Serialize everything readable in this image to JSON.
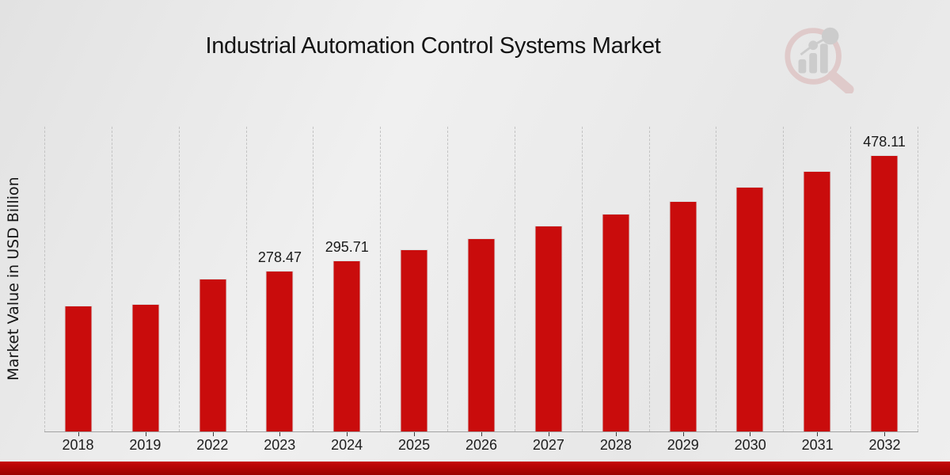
{
  "page": {
    "title": "Industrial Automation Control Systems Market"
  },
  "icons": {
    "brand_logo": "magnifier-bar-chart-logo"
  },
  "colors": {
    "bar": "#c90c0c",
    "strip_top": "#c70808",
    "strip_bottom": "#9a0101",
    "background": "#eaeaea",
    "gridline": "#c3c3c3",
    "axis_line": "#a3a3a3"
  },
  "chart_data": {
    "type": "bar",
    "title": "Industrial Automation Control Systems Market",
    "xlabel": "",
    "ylabel": "Market Value in USD Billion",
    "categories": [
      "2018",
      "2019",
      "2022",
      "2023",
      "2024",
      "2025",
      "2026",
      "2027",
      "2028",
      "2029",
      "2030",
      "2031",
      "2032"
    ],
    "values": [
      217,
      221,
      264,
      278.47,
      295.71,
      315,
      334,
      356,
      376,
      399,
      423,
      450,
      478.11
    ],
    "data_labels": {
      "2023": "278.47",
      "2024": "295.71",
      "2032": "478.11"
    },
    "ylim": [
      0,
      527
    ],
    "grid": "vertical-dashed",
    "legend": "none",
    "bar_color": "#c90c0c"
  }
}
